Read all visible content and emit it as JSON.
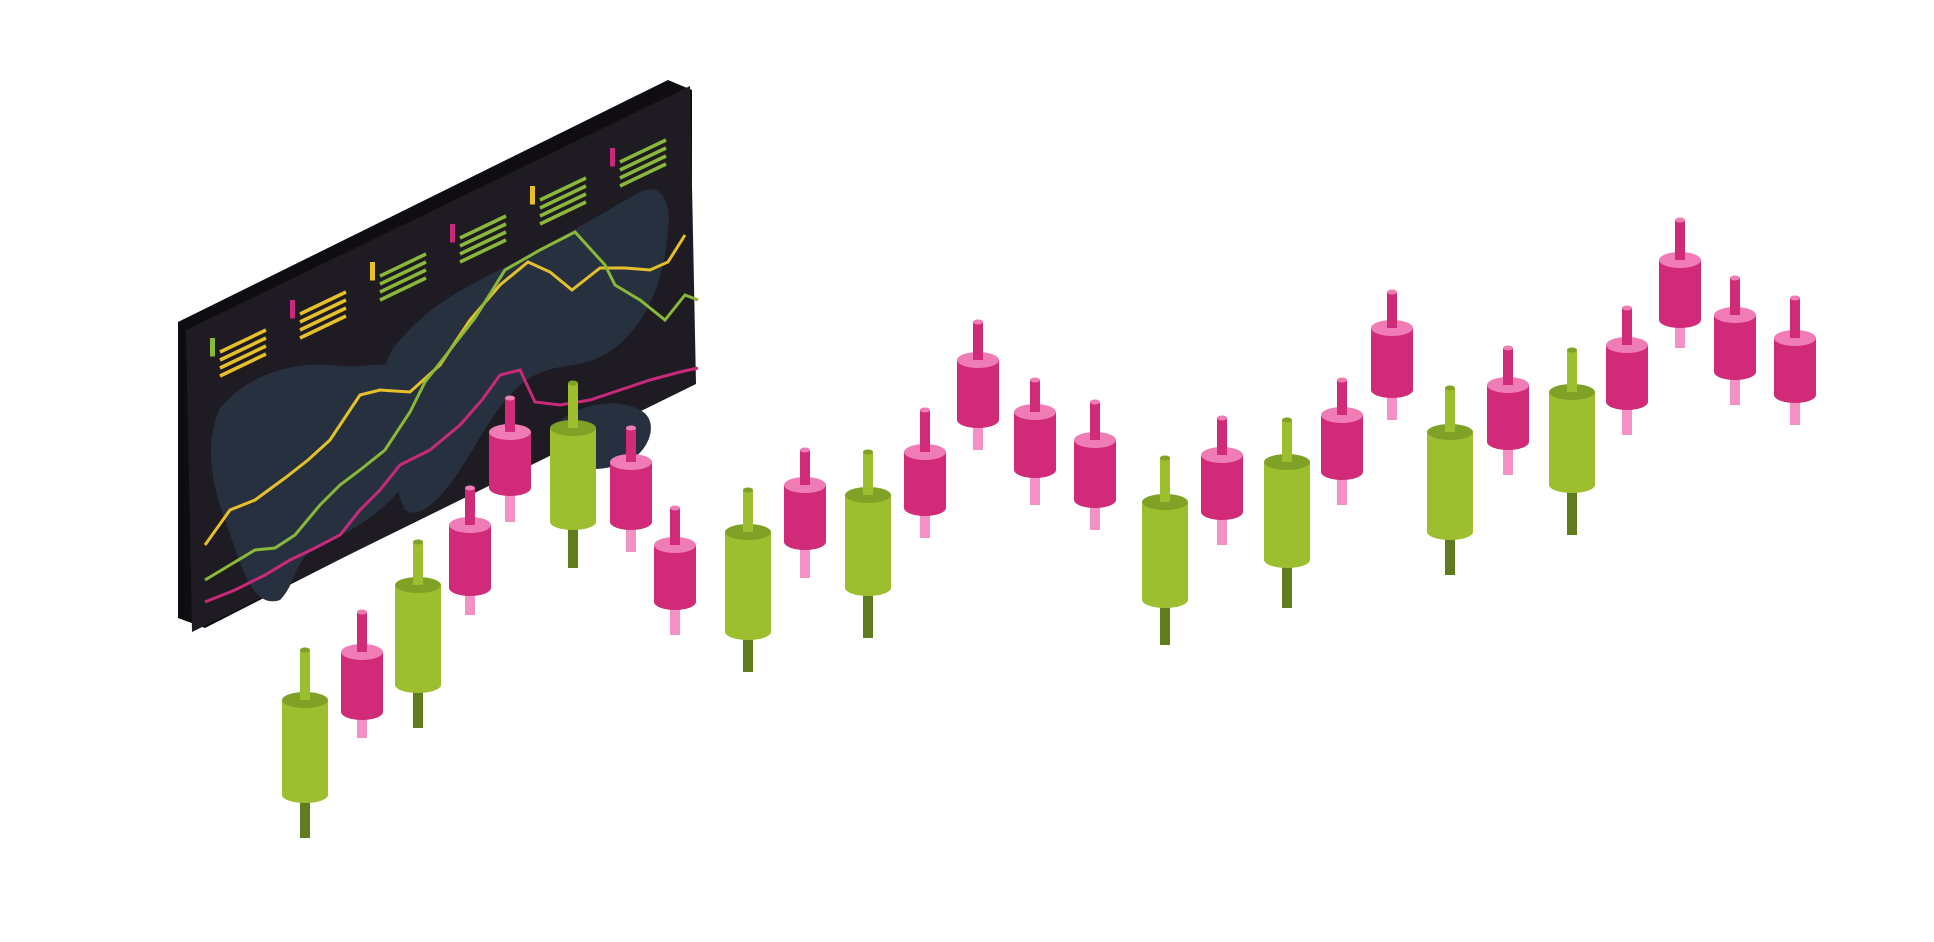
{
  "colors": {
    "background": "#ffffff",
    "bull_body": "#9dbf2f",
    "bull_top": "#7fa125",
    "bull_wick_dark": "#5f7d1c",
    "bear_body": "#d02a78",
    "bear_top": "#f07cb5",
    "bear_wick_light": "#f590c4",
    "panel_face": "#1e1b22",
    "panel_side": "#0f0d12",
    "panel_map": "#26303f",
    "line_yellow": "#e6c02a",
    "line_green": "#8ab83a",
    "line_magenta": "#c8297a"
  },
  "dashboard_panel": {
    "icon": "stock-dashboard-screen",
    "legend_groups": 6,
    "series": [
      "yellow-line",
      "green-line",
      "magenta-line"
    ]
  },
  "candles": [
    {
      "kind": "bull"
    },
    {
      "kind": "bear"
    },
    {
      "kind": "bull"
    },
    {
      "kind": "bear"
    },
    {
      "kind": "bear"
    },
    {
      "kind": "bull"
    },
    {
      "kind": "bear"
    },
    {
      "kind": "bear"
    },
    {
      "kind": "bull"
    },
    {
      "kind": "bear"
    },
    {
      "kind": "bull"
    },
    {
      "kind": "bear"
    },
    {
      "kind": "bear"
    },
    {
      "kind": "bear"
    },
    {
      "kind": "bear"
    },
    {
      "kind": "bull"
    },
    {
      "kind": "bear"
    },
    {
      "kind": "bull"
    },
    {
      "kind": "bear"
    },
    {
      "kind": "bear"
    },
    {
      "kind": "bull"
    },
    {
      "kind": "bear"
    },
    {
      "kind": "bull"
    },
    {
      "kind": "bear"
    },
    {
      "kind": "bear"
    },
    {
      "kind": "bear"
    },
    {
      "kind": "bear"
    }
  ]
}
